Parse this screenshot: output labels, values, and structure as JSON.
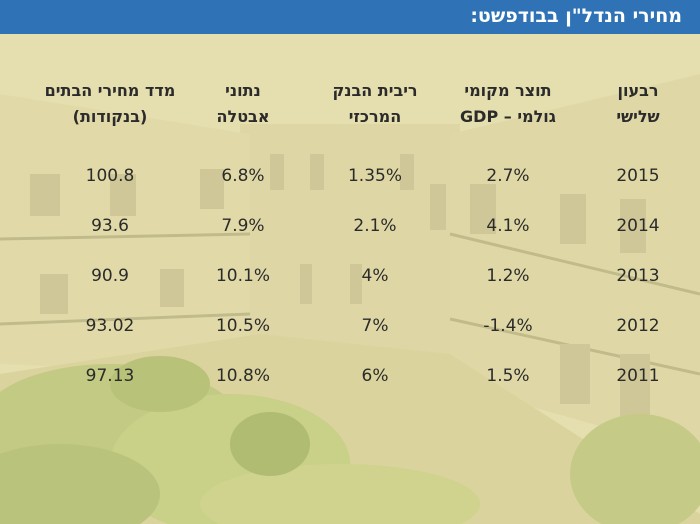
{
  "header": {
    "title": "מחירי הנדל\"ן בבודפשט:"
  },
  "chart_data": {
    "type": "table",
    "columns": [
      {
        "key": "quarter",
        "label": [
          "רבעון",
          "שלישי"
        ]
      },
      {
        "key": "gdp",
        "label": [
          "תוצר מקומי",
          "גולמי – GDP"
        ]
      },
      {
        "key": "rate",
        "label": [
          "ריבית הבנק",
          "המרכזי"
        ]
      },
      {
        "key": "unemployment",
        "label": [
          "נתוני",
          "אבטלה"
        ]
      },
      {
        "key": "house_index",
        "label": [
          "מדד מחירי הבתים",
          "(בנקודות)"
        ]
      }
    ],
    "rows": [
      {
        "quarter": "2015",
        "gdp": "2.7%",
        "rate": "1.35%",
        "unemployment": "6.8%",
        "house_index": "100.8"
      },
      {
        "quarter": "2014",
        "gdp": "4.1%",
        "rate": "2.1%",
        "unemployment": "7.9%",
        "house_index": "93.6"
      },
      {
        "quarter": "2013",
        "gdp": "1.2%",
        "rate": "4%",
        "unemployment": "10.1%",
        "house_index": "90.9"
      },
      {
        "quarter": "2012",
        "gdp": "-1.4%",
        "rate": "7%",
        "unemployment": "10.5%",
        "house_index": "93.02"
      },
      {
        "quarter": "2011",
        "gdp": "1.5%",
        "rate": "6%",
        "unemployment": "10.8%",
        "house_index": "97.13"
      }
    ]
  },
  "colors": {
    "title_bar": "#2f73b6",
    "text": "#2b2b2b",
    "overlay": "#efe7a2"
  }
}
